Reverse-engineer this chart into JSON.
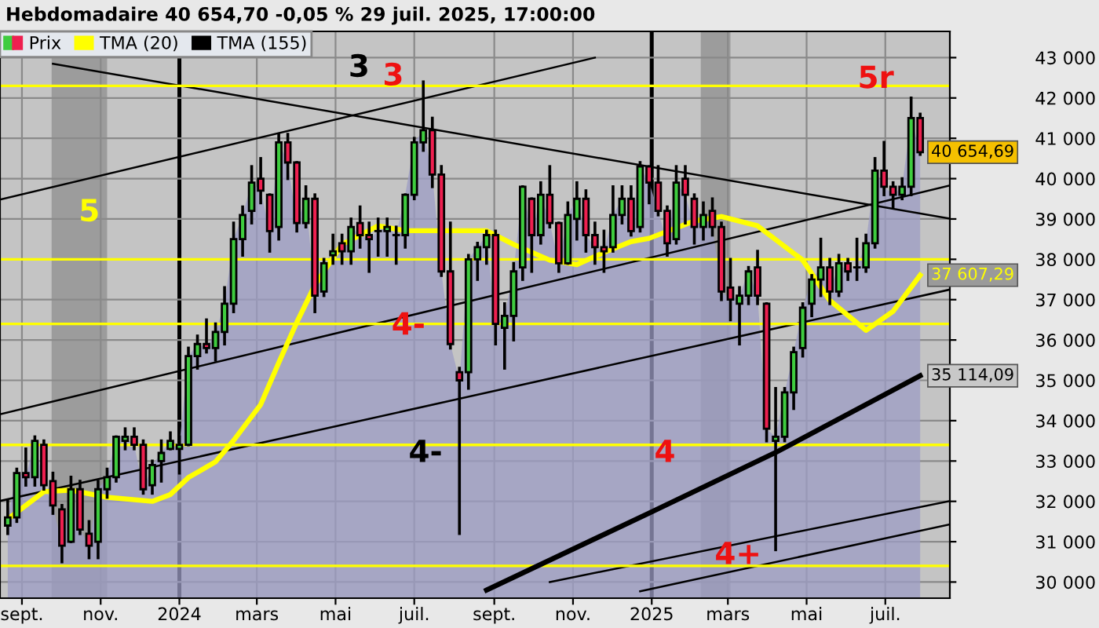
{
  "chart_data": {
    "type": "candlestick",
    "title": "Hebdomadaire 40 654,70 -0,05 % 29 juil. 2025, 17:00:00",
    "x": [
      "2023-08-21",
      "2023-08-28",
      "2023-09-04",
      "2023-09-11",
      "2023-09-18",
      "2023-09-25",
      "2023-10-02",
      "2023-10-09",
      "2023-10-16",
      "2023-10-23",
      "2023-10-30",
      "2023-11-06",
      "2023-11-13",
      "2023-11-20",
      "2023-11-27",
      "2023-12-04",
      "2023-12-11",
      "2023-12-18",
      "2023-12-25",
      "2024-01-01",
      "2024-01-08",
      "2024-01-15",
      "2024-01-22",
      "2024-01-29",
      "2024-02-05",
      "2024-02-12",
      "2024-02-19",
      "2024-02-26",
      "2024-03-04",
      "2024-03-11",
      "2024-03-18",
      "2024-03-25",
      "2024-04-01",
      "2024-04-08",
      "2024-04-15",
      "2024-04-22",
      "2024-04-29",
      "2024-05-06",
      "2024-05-13",
      "2024-05-20",
      "2024-05-27",
      "2024-06-03",
      "2024-06-10",
      "2024-06-17",
      "2024-06-24",
      "2024-07-01",
      "2024-07-08",
      "2024-07-15",
      "2024-07-22",
      "2024-07-29",
      "2024-08-05",
      "2024-08-12",
      "2024-08-19",
      "2024-08-26",
      "2024-09-02",
      "2024-09-09",
      "2024-09-16",
      "2024-09-23",
      "2024-09-30",
      "2024-10-07",
      "2024-10-14",
      "2024-10-21",
      "2024-10-28",
      "2024-11-04",
      "2024-11-11",
      "2024-11-18",
      "2024-11-25",
      "2024-12-02",
      "2024-12-09",
      "2024-12-16",
      "2024-12-23",
      "2024-12-30",
      "2025-01-06",
      "2025-01-13",
      "2025-01-20",
      "2025-01-27",
      "2025-02-03",
      "2025-02-10",
      "2025-02-17",
      "2025-02-24",
      "2025-03-03",
      "2025-03-10",
      "2025-03-17",
      "2025-03-24",
      "2025-03-31",
      "2025-04-07",
      "2025-04-14",
      "2025-04-21",
      "2025-04-28",
      "2025-05-05",
      "2025-05-12",
      "2025-05-19",
      "2025-05-26",
      "2025-06-02",
      "2025-06-09",
      "2025-06-16",
      "2025-06-23",
      "2025-06-30",
      "2025-07-07",
      "2025-07-14",
      "2025-07-21",
      "2025-07-28"
    ],
    "series": [
      {
        "type": "area",
        "color": "#9c9cc4",
        "value_labels": [
          null,
          null,
          null,
          null,
          null,
          null,
          null,
          null,
          null,
          null,
          null,
          null,
          null,
          null,
          null,
          null,
          null,
          null,
          null,
          null,
          null,
          null,
          null,
          null,
          null,
          null,
          null,
          null,
          null,
          null,
          null,
          null,
          null,
          null,
          null,
          null,
          null,
          null,
          null,
          null,
          null,
          null,
          null,
          null,
          null,
          null,
          null,
          null,
          null,
          null,
          null,
          null,
          null,
          null,
          null,
          null,
          null,
          null,
          null,
          null,
          null,
          null,
          null,
          null,
          null,
          null,
          null,
          null,
          null,
          null,
          null,
          null,
          null,
          null,
          null,
          null,
          null,
          null,
          null,
          null,
          null,
          null,
          null,
          null,
          null,
          null,
          null,
          null,
          null,
          null,
          null,
          null,
          null,
          null,
          null,
          null,
          null,
          null,
          null,
          null,
          null,
          "40 654,69"
        ],
        "values": [
          31600,
          32700,
          32600,
          33500,
          32400,
          31900,
          30900,
          32300,
          31300,
          30900,
          32300,
          32600,
          33600,
          33600,
          33400,
          32300,
          32900,
          33200,
          33500,
          33400,
          35600,
          35900,
          35800,
          36200,
          36900,
          38500,
          39100,
          39900,
          39700,
          38700,
          40900,
          40400,
          38900,
          39500,
          37100,
          37900,
          38200,
          38200,
          38800,
          38600,
          38500,
          38700,
          38800,
          38600,
          39600,
          40900,
          41200,
          40100,
          37700,
          35900,
          35000,
          38000,
          38300,
          38600,
          36400,
          36600,
          37700,
          39800,
          38600,
          39600,
          38900,
          37900,
          39100,
          39500,
          38600,
          38300,
          38200,
          39100,
          39500,
          38700,
          40300,
          39900,
          39200,
          38400,
          39900,
          39600,
          38800,
          39100,
          38800,
          37200,
          37000,
          37100,
          37700,
          37100,
          33800,
          33600,
          34700,
          35700,
          36800,
          37500,
          37800,
          37200,
          37900,
          37700,
          37800,
          38400,
          40200,
          39800,
          39600,
          39800,
          41500,
          40654.69
        ]
      },
      {
        "type": "line",
        "color": "#000000",
        "x": [
          "2023-09-25",
          "2025-08-20"
        ],
        "values": [
          42850,
          39010
        ]
      },
      {
        "type": "line",
        "color": "#000000",
        "x": [
          "2023-08-15",
          "2024-11-18"
        ],
        "values": [
          39480,
          43000
        ]
      },
      {
        "type": "line",
        "color": "#000000",
        "x": [
          "2023-08-15",
          "2025-08-20"
        ],
        "values": [
          34160,
          39830
        ]
      },
      {
        "type": "line",
        "color": "#000000",
        "x": [
          "2023-08-15",
          "2025-08-20"
        ],
        "values": [
          32010,
          37250
        ]
      },
      {
        "type": "line",
        "color": "#000000",
        "x": [
          "2024-12-23",
          "2025-08-20"
        ],
        "values": [
          29770,
          31430
        ]
      },
      {
        "type": "line",
        "color": "#000000",
        "x": [
          "2024-10-14",
          "2025-08-20"
        ],
        "values": [
          30000,
          32010
        ]
      },
      {
        "name": "TMA (155)",
        "type": "line",
        "color": "#000000",
        "value_labels": [
          null,
          null,
          null,
          "35 114,09"
        ],
        "x": [
          "2024-08-26",
          "2024-12-30",
          "2025-04-07",
          "2025-07-28"
        ],
        "values": [
          29800,
          31710,
          33210,
          35114.09
        ]
      },
      {
        "name": "TMA (20)",
        "type": "line",
        "color": "#ffff00",
        "value_labels": [
          null,
          null,
          null,
          null,
          null,
          null,
          null,
          null,
          null,
          null,
          null,
          null,
          null,
          null,
          null,
          null,
          null,
          null,
          null,
          null,
          null,
          null,
          null,
          null,
          null,
          null,
          null,
          null,
          null,
          null,
          null,
          "37 607,29"
        ],
        "x": [
          "2023-08-21",
          "2023-09-18",
          "2023-10-09",
          "2023-11-06",
          "2023-12-11",
          "2023-12-25",
          "2024-01-08",
          "2024-01-29",
          "2024-02-12",
          "2024-03-04",
          "2024-03-18",
          "2024-04-01",
          "2024-04-15",
          "2024-05-06",
          "2024-06-03",
          "2024-06-24",
          "2024-07-22",
          "2024-08-26",
          "2024-09-16",
          "2024-10-14",
          "2024-11-04",
          "2024-11-25",
          "2024-12-16",
          "2024-12-30",
          "2025-02-03",
          "2025-02-24",
          "2025-03-24",
          "2025-04-28",
          "2025-05-19",
          "2025-06-16",
          "2025-07-07",
          "2025-07-28"
        ],
        "values": [
          31560,
          32240,
          32280,
          32100,
          32000,
          32170,
          32590,
          32980,
          33510,
          34400,
          35440,
          36440,
          37360,
          38370,
          38830,
          38710,
          38710,
          38710,
          38370,
          37980,
          37870,
          38170,
          38440,
          38520,
          38950,
          39060,
          38830,
          37980,
          36980,
          36240,
          36710,
          37607.29
        ]
      },
      {
        "name": "Prix",
        "colors": [
          "#3fcc3f",
          "#3fcc3f",
          "#ee2050",
          "#3fcc3f",
          "#ee2050",
          "#ee2050",
          "#ee2050",
          "#3fcc3f",
          "#ee2050",
          "#ee2050",
          "#3fcc3f",
          "#3fcc3f",
          "#3fcc3f",
          "#3fcc3f",
          "#ee2050",
          "#ee2050",
          "#3fcc3f",
          "#3fcc3f",
          "#3fcc3f",
          "#3fcc3f",
          "#3fcc3f",
          "#3fcc3f",
          "#ee2050",
          "#3fcc3f",
          "#3fcc3f",
          "#3fcc3f",
          "#3fcc3f",
          "#3fcc3f",
          "#ee2050",
          "#ee2050",
          "#3fcc3f",
          "#ee2050",
          "#ee2050",
          "#3fcc3f",
          "#ee2050",
          "#3fcc3f",
          "#3fcc3f",
          "#ee2050",
          "#3fcc3f",
          "#ee2050",
          "#ee2050",
          "#3fcc3f",
          "#3fcc3f",
          "#3fcc3f",
          "#3fcc3f",
          "#3fcc3f",
          "#3fcc3f",
          "#ee2050",
          "#ee2050",
          "#ee2050",
          "#ee2050",
          "#3fcc3f",
          "#3fcc3f",
          "#3fcc3f",
          "#ee2050",
          "#3fcc3f",
          "#3fcc3f",
          "#3fcc3f",
          "#ee2050",
          "#3fcc3f",
          "#ee2050",
          "#ee2050",
          "#3fcc3f",
          "#3fcc3f",
          "#ee2050",
          "#ee2050",
          "#ee2050",
          "#3fcc3f",
          "#3fcc3f",
          "#ee2050",
          "#3fcc3f",
          "#ee2050",
          "#ee2050",
          "#ee2050",
          "#3fcc3f",
          "#ee2050",
          "#ee2050",
          "#3fcc3f",
          "#ee2050",
          "#ee2050",
          "#ee2050",
          "#3fcc3f",
          "#3fcc3f",
          "#ee2050",
          "#ee2050",
          "#3fcc3f",
          "#3fcc3f",
          "#3fcc3f",
          "#3fcc3f",
          "#3fcc3f",
          "#3fcc3f",
          "#ee2050",
          "#3fcc3f",
          "#ee2050",
          "#3fcc3f",
          "#3fcc3f",
          "#3fcc3f",
          "#ee2050",
          "#ee2050",
          "#3fcc3f",
          "#3fcc3f",
          "#ee2050"
        ],
        "ohlc": [
          [
            31400,
            32000,
            31200,
            31600
          ],
          [
            31600,
            32800,
            31500,
            32700
          ],
          [
            32700,
            33300,
            32400,
            32600
          ],
          [
            32600,
            33600,
            32400,
            33500
          ],
          [
            33400,
            33500,
            32300,
            32400
          ],
          [
            32500,
            32700,
            31700,
            31900
          ],
          [
            31800,
            31900,
            30500,
            30900
          ],
          [
            31000,
            32600,
            31000,
            32300
          ],
          [
            32300,
            32500,
            31200,
            31300
          ],
          [
            31200,
            31500,
            30600,
            30900
          ],
          [
            31000,
            32500,
            30600,
            32300
          ],
          [
            32300,
            32800,
            32100,
            32600
          ],
          [
            32600,
            33600,
            32500,
            33600
          ],
          [
            33500,
            33800,
            33300,
            33600
          ],
          [
            33600,
            33800,
            33300,
            33400
          ],
          [
            33400,
            33500,
            32200,
            32300
          ],
          [
            32400,
            33000,
            32200,
            32900
          ],
          [
            33000,
            33500,
            32500,
            33200
          ],
          [
            33300,
            33700,
            33300,
            33500
          ],
          [
            33300,
            33600,
            32700,
            33400
          ],
          [
            33400,
            35800,
            33400,
            35600
          ],
          [
            35600,
            36100,
            35300,
            35900
          ],
          [
            35900,
            36500,
            35700,
            35800
          ],
          [
            35800,
            36400,
            35500,
            36200
          ],
          [
            36200,
            37300,
            35900,
            36900
          ],
          [
            36900,
            38900,
            36700,
            38500
          ],
          [
            38500,
            39300,
            38100,
            39100
          ],
          [
            39200,
            40300,
            38900,
            39900
          ],
          [
            40000,
            40500,
            39400,
            39700
          ],
          [
            39600,
            39600,
            38200,
            38700
          ],
          [
            38800,
            41100,
            38500,
            40900
          ],
          [
            40900,
            41100,
            40000,
            40400
          ],
          [
            40400,
            40400,
            38700,
            38900
          ],
          [
            38900,
            39800,
            38800,
            39500
          ],
          [
            39500,
            39600,
            36700,
            37100
          ],
          [
            37200,
            38000,
            37100,
            37900
          ],
          [
            38100,
            38600,
            37900,
            38200
          ],
          [
            38400,
            38600,
            37900,
            38200
          ],
          [
            38200,
            39000,
            37900,
            38800
          ],
          [
            38900,
            39300,
            38300,
            38600
          ],
          [
            38600,
            38900,
            37700,
            38500
          ],
          [
            38700,
            39000,
            38100,
            38700
          ],
          [
            38700,
            39000,
            38100,
            38800
          ],
          [
            38600,
            38800,
            37900,
            38600
          ],
          [
            38600,
            39600,
            38300,
            39600
          ],
          [
            39600,
            41000,
            39500,
            40900
          ],
          [
            40900,
            42400,
            40700,
            41200
          ],
          [
            41200,
            41500,
            39800,
            40100
          ],
          [
            40100,
            40300,
            37600,
            37700
          ],
          [
            37700,
            38900,
            35800,
            35900
          ],
          [
            35200,
            35300,
            31200,
            35000
          ],
          [
            35200,
            38100,
            34800,
            38000
          ],
          [
            38000,
            38400,
            37500,
            38300
          ],
          [
            38300,
            38700,
            37900,
            38600
          ],
          [
            38600,
            38700,
            35900,
            36400
          ],
          [
            36300,
            36900,
            35300,
            36600
          ],
          [
            36600,
            37900,
            36000,
            37700
          ],
          [
            37800,
            39800,
            37500,
            39800
          ],
          [
            39500,
            39500,
            37700,
            38600
          ],
          [
            38600,
            39900,
            38400,
            39600
          ],
          [
            39600,
            40300,
            38800,
            38900
          ],
          [
            38900,
            38900,
            37700,
            37900
          ],
          [
            37900,
            39400,
            37900,
            39100
          ],
          [
            39000,
            39900,
            38500,
            39500
          ],
          [
            39500,
            39700,
            38200,
            38600
          ],
          [
            38600,
            38900,
            37900,
            38300
          ],
          [
            38300,
            38700,
            37700,
            38200
          ],
          [
            38300,
            39800,
            38200,
            39100
          ],
          [
            39100,
            39800,
            38900,
            39500
          ],
          [
            39500,
            39800,
            38600,
            38700
          ],
          [
            38800,
            40400,
            38700,
            40300
          ],
          [
            40300,
            40300,
            39400,
            39900
          ],
          [
            39900,
            40300,
            39100,
            39200
          ],
          [
            39200,
            39300,
            38100,
            38400
          ],
          [
            38500,
            40300,
            38400,
            39900
          ],
          [
            40000,
            40300,
            38900,
            39600
          ],
          [
            39500,
            39600,
            38400,
            38800
          ],
          [
            38800,
            39400,
            38500,
            39100
          ],
          [
            39200,
            39500,
            38600,
            38800
          ],
          [
            38800,
            38900,
            37000,
            37200
          ],
          [
            37300,
            38000,
            36500,
            37000
          ],
          [
            36900,
            37300,
            35900,
            37100
          ],
          [
            37100,
            37800,
            36900,
            37700
          ],
          [
            37800,
            38200,
            36900,
            37100
          ],
          [
            36900,
            36900,
            33500,
            33800
          ],
          [
            33500,
            34800,
            30800,
            33600
          ],
          [
            33600,
            34800,
            33500,
            34700
          ],
          [
            34700,
            35800,
            34300,
            35700
          ],
          [
            35800,
            36900,
            35600,
            36800
          ],
          [
            36900,
            37600,
            36600,
            37500
          ],
          [
            37500,
            38500,
            37100,
            37800
          ],
          [
            37800,
            38000,
            36900,
            37200
          ],
          [
            37200,
            38100,
            37100,
            37900
          ],
          [
            37900,
            38000,
            37500,
            37700
          ],
          [
            37800,
            38500,
            37500,
            37800
          ],
          [
            37800,
            38600,
            37700,
            38400
          ],
          [
            38400,
            40500,
            38300,
            40200
          ],
          [
            40200,
            40900,
            39600,
            39800
          ],
          [
            39800,
            39900,
            39300,
            39600
          ],
          [
            39600,
            40000,
            39500,
            39800
          ],
          [
            39800,
            42000,
            39600,
            41500
          ],
          [
            41500,
            41600,
            40600,
            40654.69
          ]
        ]
      }
    ],
    "xlim": [
      "2023-08-15",
      "2025-08-20"
    ],
    "xticks": [
      {
        "value": "2023-09-01",
        "label": "sept."
      },
      {
        "value": "2023-11-01",
        "label": "nov."
      },
      {
        "value": "2024-01-01",
        "label": "2024"
      },
      {
        "value": "2024-03-01",
        "label": "mars"
      },
      {
        "value": "2024-05-01",
        "label": "mai"
      },
      {
        "value": "2024-07-01",
        "label": "juil."
      },
      {
        "value": "2024-09-01",
        "label": "sept."
      },
      {
        "value": "2024-11-01",
        "label": "nov."
      },
      {
        "value": "2025-01-01",
        "label": "2025"
      },
      {
        "value": "2025-03-01",
        "label": "mars"
      },
      {
        "value": "2025-05-01",
        "label": "mai"
      },
      {
        "value": "2025-07-01",
        "label": "juil."
      }
    ],
    "ylim": [
      29600,
      43650
    ],
    "yticks": [
      {
        "value": 30000,
        "label": "30 000"
      },
      {
        "value": 31000,
        "label": "31 000"
      },
      {
        "value": 32000,
        "label": "32 000"
      },
      {
        "value": 33000,
        "label": "33 000"
      },
      {
        "value": 34000,
        "label": "34 000"
      },
      {
        "value": 35000,
        "label": "35 000"
      },
      {
        "value": 36000,
        "label": "36 000"
      },
      {
        "value": 37000,
        "label": "37 000"
      },
      {
        "value": 38000,
        "label": "38 000"
      },
      {
        "value": 39000,
        "label": "39 000"
      },
      {
        "value": 40000,
        "label": "40 000"
      },
      {
        "value": 41000,
        "label": "41 000"
      },
      {
        "value": 42000,
        "label": "42 000"
      },
      {
        "value": 43000,
        "label": "43 000"
      }
    ],
    "grid": true,
    "legend": "top left",
    "ref_lines": [
      {
        "axis": "y",
        "value": 42300,
        "color": "#ffff00"
      },
      {
        "axis": "y",
        "value": 38000,
        "color": "#ffff00"
      },
      {
        "axis": "y",
        "value": 36400,
        "color": "#ffff00"
      },
      {
        "axis": "y",
        "value": 33400,
        "color": "#ffff00"
      },
      {
        "axis": "y",
        "value": 30400,
        "color": "#ffff00"
      }
    ],
    "bands": [
      {
        "axis": "x",
        "from": "2023-09-24",
        "to": "2023-11-06",
        "color": "#8c8c8c"
      },
      {
        "axis": "x",
        "from": "2025-02-08",
        "to": "2025-03-03",
        "color": "#8c8c8c"
      }
    ],
    "annotations": [
      "3",
      "3",
      "5",
      "4-",
      "4-",
      "4",
      "4+",
      "5r"
    ]
  }
}
